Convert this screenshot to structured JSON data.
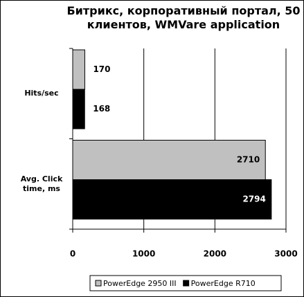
{
  "chart_data": {
    "type": "bar",
    "orientation": "horizontal",
    "title": "Битрикс, корпоративный портал, 50 клиентов, WMVare application",
    "categories": [
      "Hits/sec",
      "Avg. Click time, ms"
    ],
    "series": [
      {
        "name": "PowerEdge 2950 III",
        "color": "#c0c0c0",
        "values": [
          170,
          2710
        ]
      },
      {
        "name": "PowerEdge R710",
        "color": "#000000",
        "values": [
          168,
          2794
        ]
      }
    ],
    "xlim": [
      0,
      3000
    ],
    "xticks": [
      0,
      1000,
      2000,
      3000
    ],
    "grid": true,
    "legend": "bottom"
  }
}
